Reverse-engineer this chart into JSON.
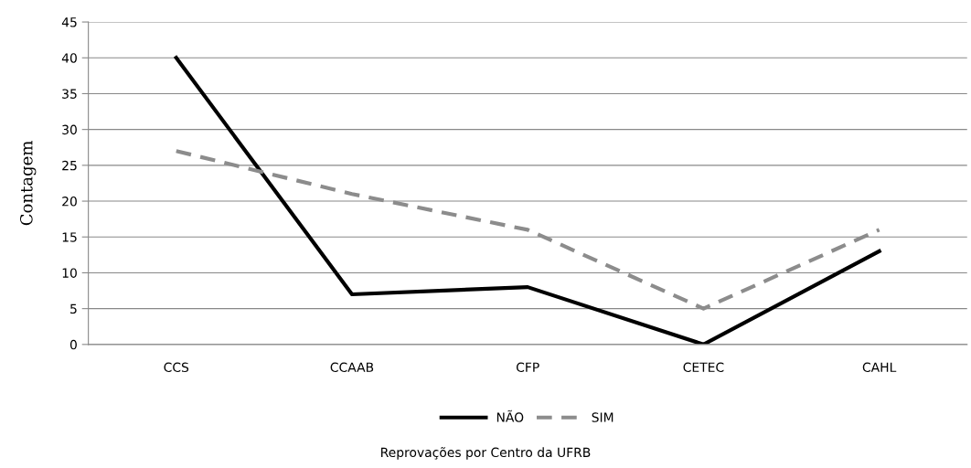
{
  "chart_data": {
    "type": "line",
    "annotations": [
      "Reprovações por Centro da UFRB"
    ],
    "ylabel": "Contagem",
    "categories": [
      "CCS",
      "CCAAB",
      "CFP",
      "CETEC",
      "CAHL"
    ],
    "series": [
      {
        "name": "NÃO",
        "color": "#000000",
        "line_style": "solid",
        "values": [
          40,
          7,
          8,
          0,
          13
        ]
      },
      {
        "name": "SIM",
        "color": "#8c8c8c",
        "line_style": "dashed",
        "values": [
          27,
          21,
          16,
          5,
          16
        ]
      }
    ],
    "ylim": [
      0,
      45
    ],
    "yticks": [
      0,
      5,
      10,
      15,
      20,
      25,
      30,
      35,
      40,
      45
    ],
    "grid": "y",
    "legend": "bottom"
  }
}
